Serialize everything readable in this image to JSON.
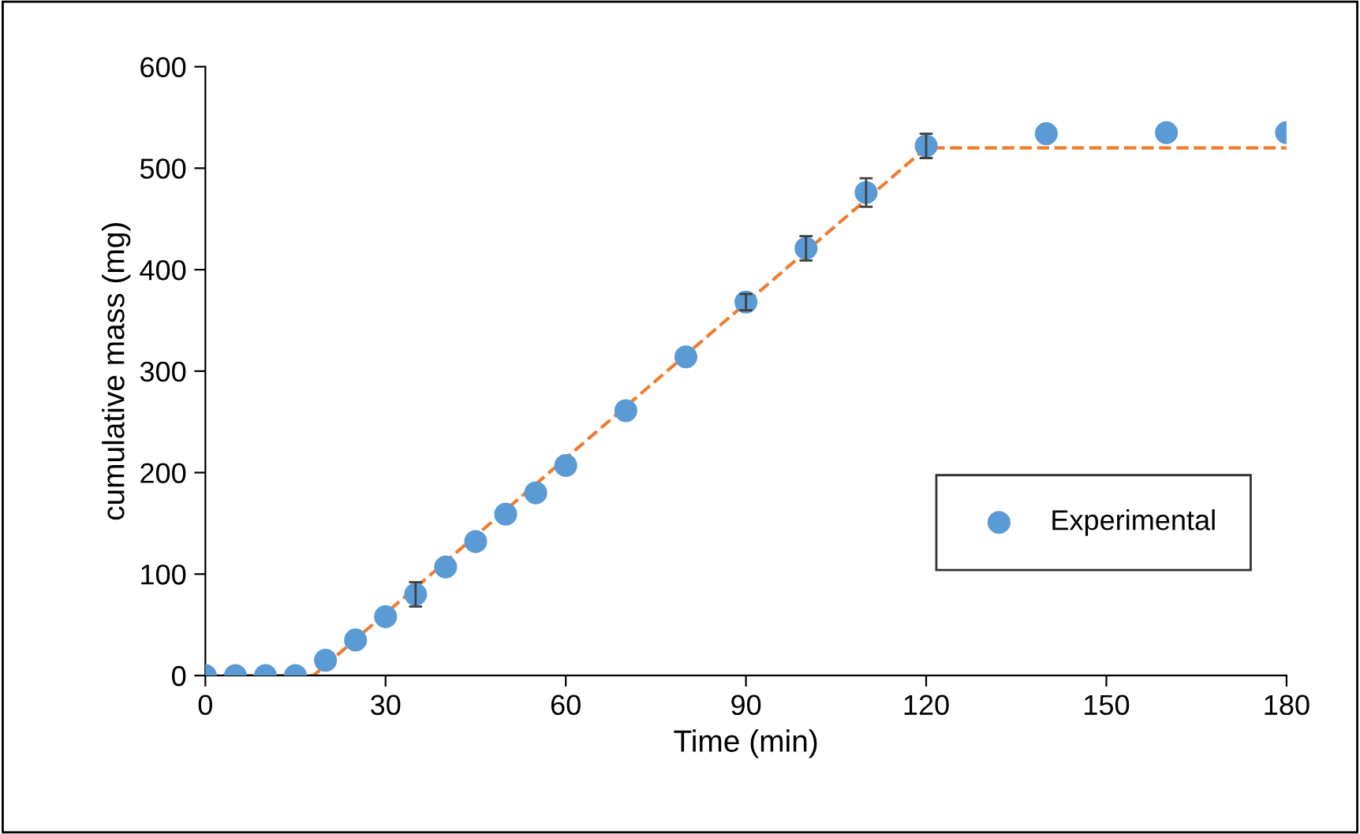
{
  "chart_data": {
    "type": "scatter",
    "xlabel": "Time (min)",
    "ylabel": "cumulative mass (mg)",
    "xlim": [
      0,
      180
    ],
    "xticks": [
      0,
      30,
      60,
      90,
      120,
      150,
      180
    ],
    "ylim": [
      0,
      600
    ],
    "yticks": [
      0,
      100,
      200,
      300,
      400,
      500,
      600
    ],
    "grid": false,
    "legend": "bottom right",
    "series": [
      {
        "type": "line",
        "line_style": "dashed",
        "marker": "none",
        "color": "#ed7d31",
        "x": [
          0,
          18,
          120,
          180
        ],
        "values": [
          0,
          0,
          520,
          520
        ]
      },
      {
        "type": "scatter",
        "name": "Experimental",
        "marker": "circle",
        "color": "#5b9bd5",
        "x": [
          0,
          5,
          10,
          15,
          20,
          25,
          30,
          35,
          40,
          45,
          50,
          55,
          60,
          70,
          80,
          90,
          100,
          110,
          120,
          140,
          160,
          180
        ],
        "values": [
          0,
          0,
          0,
          0,
          15,
          35,
          58,
          80,
          107,
          132,
          159,
          180,
          207,
          261,
          314,
          368,
          421,
          476,
          522,
          534,
          535,
          535
        ],
        "errors": [
          null,
          null,
          null,
          null,
          null,
          null,
          null,
          12,
          null,
          null,
          null,
          null,
          null,
          null,
          null,
          8,
          12,
          14,
          12,
          null,
          null,
          null
        ]
      }
    ]
  }
}
